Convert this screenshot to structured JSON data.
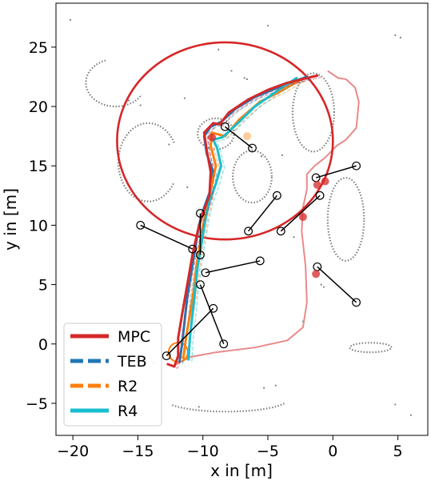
{
  "chart_data": {
    "type": "line",
    "xlabel": "x in [m]",
    "ylabel": "y in [m]",
    "xlim": [
      -21.3,
      7.3
    ],
    "ylim": [
      -7.7,
      28.7
    ],
    "xticks": [
      -20,
      -15,
      -10,
      -5,
      0,
      5
    ],
    "yticks": [
      -5,
      0,
      5,
      10,
      15,
      20,
      25
    ],
    "grid": false,
    "legend": {
      "placement": "lower-left"
    },
    "series": [
      {
        "name": "MPC",
        "color": "#d62728",
        "style": "solid",
        "points": [
          [
            -12.7,
            -1.7
          ],
          [
            -12.2,
            -1.9
          ],
          [
            -11.9,
            -1.0
          ],
          [
            -11.9,
            0.5
          ],
          [
            -11.6,
            2.5
          ],
          [
            -11.2,
            5.0
          ],
          [
            -10.8,
            7.5
          ],
          [
            -10.4,
            9.5
          ],
          [
            -10.0,
            11.0
          ],
          [
            -9.5,
            12.5
          ],
          [
            -9.4,
            14.5
          ],
          [
            -9.7,
            16.3
          ],
          [
            -9.9,
            17.8
          ],
          [
            -9.2,
            18.6
          ],
          [
            -8.7,
            18.5
          ],
          [
            -8.0,
            19.5
          ],
          [
            -6.5,
            20.6
          ],
          [
            -5.0,
            21.4
          ],
          [
            -3.5,
            22.0
          ],
          [
            -2.0,
            22.4
          ],
          [
            -1.2,
            22.6
          ]
        ]
      },
      {
        "name": "TEB",
        "color": "#1f77b4",
        "style": "dashed",
        "points": [
          [
            -11.8,
            -1.5
          ],
          [
            -11.6,
            0.0
          ],
          [
            -11.4,
            2.0
          ],
          [
            -11.2,
            4.0
          ],
          [
            -10.9,
            6.0
          ],
          [
            -10.6,
            8.0
          ],
          [
            -10.3,
            10.0
          ],
          [
            -9.9,
            11.5
          ],
          [
            -9.4,
            13.0
          ],
          [
            -9.2,
            14.5
          ],
          [
            -9.7,
            16.0
          ],
          [
            -9.9,
            17.5
          ],
          [
            -9.4,
            18.3
          ],
          [
            -8.6,
            18.7
          ],
          [
            -7.5,
            19.8
          ],
          [
            -6.0,
            20.8
          ],
          [
            -4.0,
            21.7
          ],
          [
            -2.0,
            22.5
          ]
        ]
      },
      {
        "name": "R2",
        "color": "#ff7f0e",
        "style": "dashed",
        "points": [
          [
            -11.5,
            -1.2
          ],
          [
            -11.3,
            0.5
          ],
          [
            -11.0,
            2.5
          ],
          [
            -10.7,
            4.5
          ],
          [
            -10.5,
            6.5
          ],
          [
            -10.2,
            8.5
          ],
          [
            -9.9,
            10.5
          ],
          [
            -9.6,
            12.0
          ],
          [
            -9.3,
            13.5
          ],
          [
            -9.0,
            15.0
          ],
          [
            -9.4,
            16.7
          ],
          [
            -9.3,
            17.8
          ],
          [
            -8.3,
            17.5
          ],
          [
            -7.2,
            18.9
          ],
          [
            -5.6,
            20.4
          ],
          [
            -4.0,
            21.3
          ],
          [
            -2.4,
            22.3
          ]
        ]
      },
      {
        "name": "R4",
        "color": "#17becf",
        "style": "solid",
        "points": [
          [
            -11.1,
            -1.3
          ],
          [
            -11.0,
            0.5
          ],
          [
            -10.8,
            2.5
          ],
          [
            -10.6,
            4.5
          ],
          [
            -10.4,
            6.5
          ],
          [
            -10.1,
            8.5
          ],
          [
            -9.8,
            10.5
          ],
          [
            -9.5,
            12.0
          ],
          [
            -9.0,
            13.5
          ],
          [
            -8.6,
            15.0
          ],
          [
            -8.9,
            16.5
          ],
          [
            -9.2,
            17.2
          ],
          [
            -8.5,
            17.4
          ],
          [
            -7.4,
            18.5
          ],
          [
            -6.0,
            20.0
          ],
          [
            -4.3,
            21.3
          ],
          [
            -2.8,
            22.4
          ]
        ]
      }
    ],
    "mpc_horizon_circle": {
      "center": [
        -8.3,
        17.1
      ],
      "radius": 8.3,
      "color": "#d62728"
    },
    "obstacle_path": {
      "color": "#e88a89",
      "points": [
        [
          -12.2,
          -1.8
        ],
        [
          -11.0,
          -1.1
        ],
        [
          -9.0,
          -0.7
        ],
        [
          -6.0,
          -0.3
        ],
        [
          -3.5,
          0.3
        ],
        [
          -2.3,
          1.4
        ],
        [
          -2.0,
          3.5
        ],
        [
          -2.1,
          6.5
        ],
        [
          -2.4,
          9.5
        ],
        [
          -2.3,
          11.5
        ],
        [
          -2.0,
          13.0
        ],
        [
          -2.0,
          14.3
        ],
        [
          -1.4,
          15.0
        ],
        [
          -0.6,
          15.7
        ],
        [
          0.3,
          16.7
        ],
        [
          1.0,
          17.2
        ],
        [
          1.8,
          18.2
        ],
        [
          2.0,
          20.4
        ],
        [
          1.7,
          21.6
        ],
        [
          1.0,
          22.3
        ],
        [
          0.4,
          22.4
        ],
        [
          -0.4,
          23.0
        ]
      ]
    },
    "dynamic_obstacles": [
      {
        "start": [
          -8.3,
          18.3
        ],
        "end": [
          -6.2,
          16.5
        ]
      },
      {
        "start": [
          -1.3,
          14.0
        ],
        "end": [
          1.8,
          15.0
        ]
      },
      {
        "start": [
          -4.3,
          12.5
        ],
        "end": [
          -6.5,
          9.5
        ]
      },
      {
        "start": [
          -1.0,
          12.5
        ],
        "end": [
          -4.0,
          9.5
        ]
      },
      {
        "start": [
          -10.2,
          11.0
        ],
        "end": [
          -10.2,
          7.5
        ]
      },
      {
        "start": [
          -14.8,
          10.0
        ],
        "end": [
          -10.8,
          8.0
        ]
      },
      {
        "start": [
          -5.6,
          7.0
        ],
        "end": [
          -9.8,
          6.0
        ]
      },
      {
        "start": [
          -1.2,
          6.5
        ],
        "end": [
          1.8,
          3.5
        ]
      },
      {
        "start": [
          -10.2,
          5.0
        ],
        "end": [
          -8.4,
          0.0
        ]
      },
      {
        "start": [
          -9.2,
          3.0
        ],
        "end": [
          -12.8,
          -1.0
        ]
      }
    ],
    "highlight_markers": [
      {
        "x": -6.6,
        "y": 17.5,
        "color": "#ffbb78"
      },
      {
        "x": -9.3,
        "y": 17.4,
        "color": "#d62728"
      },
      {
        "x": -1.2,
        "y": 13.4,
        "color": "#d62728"
      },
      {
        "x": -0.6,
        "y": 13.7,
        "color": "#d62728"
      },
      {
        "x": -2.3,
        "y": 10.7,
        "color": "#d62728"
      },
      {
        "x": -1.3,
        "y": 5.9,
        "color": "#d62728"
      }
    ],
    "static_obstacles": [
      {
        "type": "ellipse",
        "cx": -9.0,
        "cy": 17.7,
        "rx": 1.4,
        "ry": 1.3
      },
      {
        "type": "ellipse",
        "cx": -6.2,
        "cy": 14.1,
        "rx": 1.5,
        "ry": 2.2
      },
      {
        "type": "ellipse",
        "cx": -1.5,
        "cy": 19.5,
        "rx": 1.6,
        "ry": 3.3
      },
      {
        "type": "ellipse",
        "cx": 1.0,
        "cy": 10.5,
        "rx": 1.4,
        "ry": 3.5
      },
      {
        "type": "arc",
        "cx": -14.2,
        "cy": 15.3,
        "rx": 2.3,
        "ry": 3.3,
        "from": 30,
        "to": 330
      },
      {
        "type": "arc",
        "cx": -16.7,
        "cy": 22.0,
        "rx": 2.3,
        "ry": 2.0,
        "from": 110,
        "to": 330
      },
      {
        "type": "arc",
        "cx": -8.2,
        "cy": -4.6,
        "rx": 4.8,
        "ry": 1.1,
        "from": 210,
        "to": 340
      },
      {
        "type": "arc",
        "cx": 2.9,
        "cy": -0.3,
        "rx": 1.6,
        "ry": 0.4,
        "from": 0,
        "to": 360
      }
    ],
    "scatter_dots": [
      [
        -20.2,
        27.3
      ],
      [
        -12.6,
        16.8
      ],
      [
        -11.2,
        13.2
      ],
      [
        -3.0,
        9.0
      ],
      [
        -18.0,
        0.7
      ],
      [
        -13.8,
        -1.6
      ],
      [
        -10.3,
        -5.3
      ],
      [
        -5.3,
        -3.7
      ],
      [
        -4.4,
        -3.5
      ],
      [
        -2.3,
        1.9
      ],
      [
        -0.9,
        5.0
      ],
      [
        -0.7,
        4.8
      ],
      [
        -7.8,
        23.0
      ],
      [
        -8.8,
        24.8
      ],
      [
        -5.0,
        26.8
      ],
      [
        -6.8,
        22.4
      ],
      [
        -6.6,
        22.3
      ],
      [
        -11.4,
        20.7
      ],
      [
        -5.5,
        15.8
      ],
      [
        -3.9,
        15.9
      ],
      [
        4.8,
        26.0
      ],
      [
        6.0,
        -6.0
      ],
      [
        4.8,
        -5.1
      ],
      [
        5.2,
        25.8
      ],
      [
        -15.7,
        20.5
      ],
      [
        -14.8,
        20.1
      ]
    ]
  }
}
